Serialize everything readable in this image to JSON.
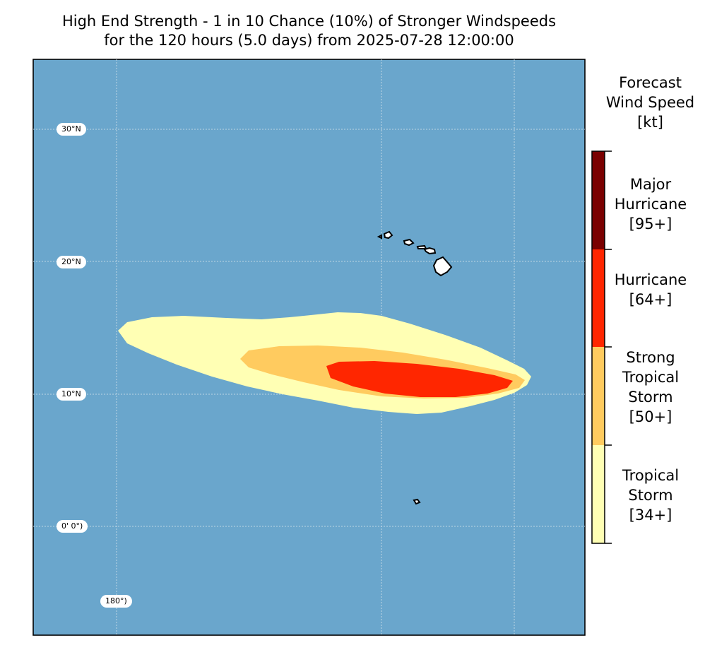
{
  "title": {
    "line1": "High End Strength - 1 in 10 Chance (10%) of Stronger Windspeeds",
    "line2": "for the 120 hours (5.0 days) from 2025-07-28 12:00:00"
  },
  "map": {
    "background_color": "#6aa6cc",
    "gridlines": {
      "lat_labels": [
        "30°N",
        "20°N",
        "10°N",
        "0' 0°)"
      ],
      "lon_labels": [
        "180°)"
      ]
    },
    "land_features": [
      "hawaiian-islands",
      "small-island-south"
    ]
  },
  "colorbar": {
    "title_lines": [
      "Forecast",
      "Wind Speed",
      "[kt]"
    ],
    "categories": [
      {
        "lines": [
          "Major",
          "Hurricane",
          "[95+]"
        ],
        "color": "#7a0000"
      },
      {
        "lines": [
          "Hurricane",
          "[64+]"
        ],
        "color": "#ff2600"
      },
      {
        "lines": [
          "Strong",
          "Tropical",
          "Storm",
          "[50+]"
        ],
        "color": "#ffcb5f"
      },
      {
        "lines": [
          "Tropical",
          "Storm",
          "[34+]"
        ],
        "color": "#ffffb4"
      }
    ]
  },
  "wind_swath_colors": {
    "tropical_storm": "#ffffb4",
    "strong_tropical_storm": "#ffcb5f",
    "hurricane": "#ff2600"
  }
}
